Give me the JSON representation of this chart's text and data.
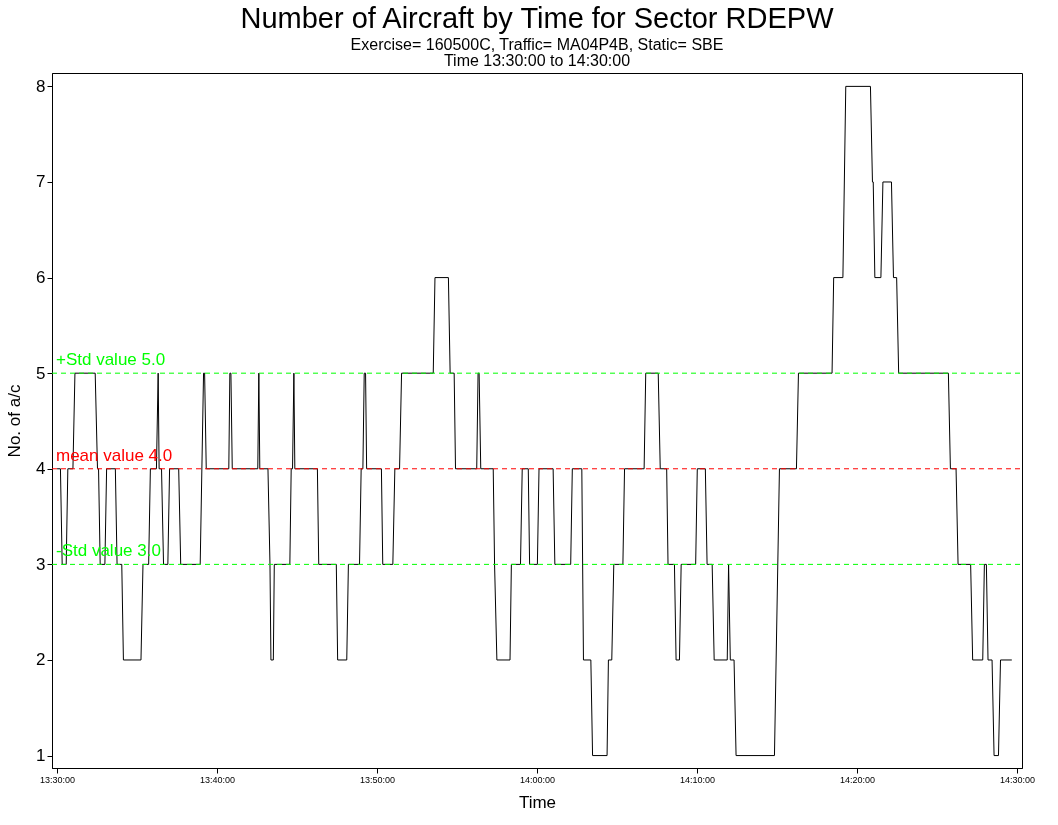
{
  "chart_data": {
    "type": "line",
    "title": "Number of Aircraft by Time for Sector RDEPW",
    "subtitle": "Exercise= 160500C, Traffic= MA04P4B, Static= SBE\nTime  13:30:00 to  14:30:00",
    "xlabel": "Time",
    "ylabel": "No.  of  a/c",
    "x": [
      13.5,
      13.5035,
      13.5053,
      13.5095,
      13.5112,
      13.5165,
      13.5186,
      13.5397,
      13.5421,
      13.5432,
      13.5449,
      13.5498,
      13.5516,
      13.5607,
      13.5625,
      13.5674,
      13.5691,
      13.5874,
      13.5895,
      13.5954,
      13.5972,
      13.6035,
      13.6053,
      13.6063,
      13.6088,
      13.6109,
      13.6154,
      13.6172,
      13.6267,
      13.6288,
      13.6491,
      13.6526,
      13.6537,
      13.6554,
      13.6789,
      13.68,
      13.6811,
      13.6825,
      13.7091,
      13.7102,
      13.7112,
      13.7197,
      13.7218,
      13.7228,
      13.7253,
      13.7263,
      13.7425,
      13.7439,
      13.7453,
      13.7467,
      13.7477,
      13.7712,
      13.7726,
      13.7909,
      13.7923,
      13.8018,
      13.8035,
      13.8151,
      13.8168,
      13.8186,
      13.82,
      13.8214,
      13.8225,
      13.8379,
      13.8393,
      13.8498,
      13.8519,
      13.8568,
      13.8589,
      13.8919,
      13.8937,
      13.9077,
      13.9095,
      13.9137,
      13.9151,
      13.9372,
      13.9386,
      13.9397,
      13.9414,
      13.9544,
      13.9558,
      13.9582,
      13.9719,
      13.9733,
      13.9828,
      13.9846,
      13.9909,
      13.9923,
      14.0004,
      14.0021,
      14.0168,
      14.0186,
      14.0351,
      14.0368,
      14.0467,
      14.0484,
      14.0561,
      14.0579,
      14.073,
      14.0744,
      14.0779,
      14.08,
      14.0895,
      14.0912,
      14.1116,
      14.1133,
      14.1263,
      14.1284,
      14.1351,
      14.1365,
      14.1432,
      14.1449,
      14.1484,
      14.1502,
      14.1653,
      14.167,
      14.1754,
      14.1772,
      14.1825,
      14.1846,
      14.1982,
      14.1996,
      14.2014,
      14.2053,
      14.2074,
      14.2474,
      14.2526,
      14.2703,
      14.2724,
      14.3074,
      14.3091,
      14.3187,
      14.3217,
      14.3474,
      14.3495,
      14.3503,
      14.352,
      14.3583,
      14.3604,
      14.3693,
      14.3714,
      14.3747,
      14.3768,
      14.4286,
      14.4307,
      14.4366,
      14.4387,
      14.4518,
      14.4539,
      14.4644,
      14.4661,
      14.4682,
      14.4699,
      14.4741,
      14.4762,
      14.4808,
      14.4829,
      14.4947
    ],
    "series": [
      {
        "color": "#000000",
        "values": [
          4,
          4,
          3,
          3,
          4,
          4,
          5,
          5,
          4,
          4,
          3,
          3,
          4,
          4,
          3,
          3,
          2,
          2,
          3,
          3,
          4,
          4,
          5,
          4,
          4,
          3,
          3,
          4,
          4,
          3,
          3,
          5,
          5,
          4,
          4,
          5,
          5,
          4,
          4,
          5,
          4,
          4,
          3,
          2,
          2,
          3,
          3,
          4,
          4,
          5,
          4,
          4,
          3,
          3,
          2,
          2,
          3,
          3,
          4,
          4,
          5,
          5,
          4,
          4,
          3,
          3,
          4,
          4,
          5,
          5,
          6,
          6,
          5,
          5,
          4,
          4,
          5,
          5,
          4,
          4,
          3,
          2,
          2,
          3,
          3,
          4,
          4,
          3,
          3,
          4,
          4,
          3,
          3,
          4,
          4,
          2,
          2,
          1,
          1,
          2,
          2,
          3,
          3,
          4,
          4,
          5,
          5,
          4,
          4,
          3,
          3,
          2,
          2,
          3,
          3,
          4,
          4,
          3,
          3,
          2,
          2,
          3,
          2,
          2,
          1,
          1,
          4,
          4,
          5,
          5,
          6,
          6,
          8,
          8,
          7,
          7,
          6,
          6,
          7,
          7,
          6,
          6,
          5,
          5,
          4,
          4,
          3,
          3,
          2,
          2,
          3,
          3,
          2,
          2,
          1,
          1,
          2,
          2
        ]
      }
    ],
    "xlim": [
      13.4947,
      14.5053
    ],
    "xticks": [
      {
        "value": 13.5,
        "label": "13:30:00"
      },
      {
        "value": 13.6667,
        "label": "13:40:00"
      },
      {
        "value": 13.8333,
        "label": "13:50:00"
      },
      {
        "value": 14.0,
        "label": "14:00:00"
      },
      {
        "value": 14.1667,
        "label": "14:10:00"
      },
      {
        "value": 14.3333,
        "label": "14:20:00"
      },
      {
        "value": 14.5,
        "label": "14:30:00"
      }
    ],
    "ylim": [
      0.87,
      8.14
    ],
    "yticks": [
      1,
      2,
      3,
      4,
      5,
      6,
      7,
      8
    ],
    "ref_lines": [
      {
        "axis": "y",
        "value": 5,
        "label": "+Std value 5.0",
        "color": "#00ff00",
        "line_style": "dashed"
      },
      {
        "axis": "y",
        "value": 4,
        "label": "mean value 4.0",
        "color": "#ff0000",
        "line_style": "dashed"
      },
      {
        "axis": "y",
        "value": 3,
        "label": "-Std value 3.0",
        "color": "#00ff00",
        "line_style": "dashed"
      }
    ],
    "grid": false,
    "marker": "none",
    "line_style": "solid"
  }
}
